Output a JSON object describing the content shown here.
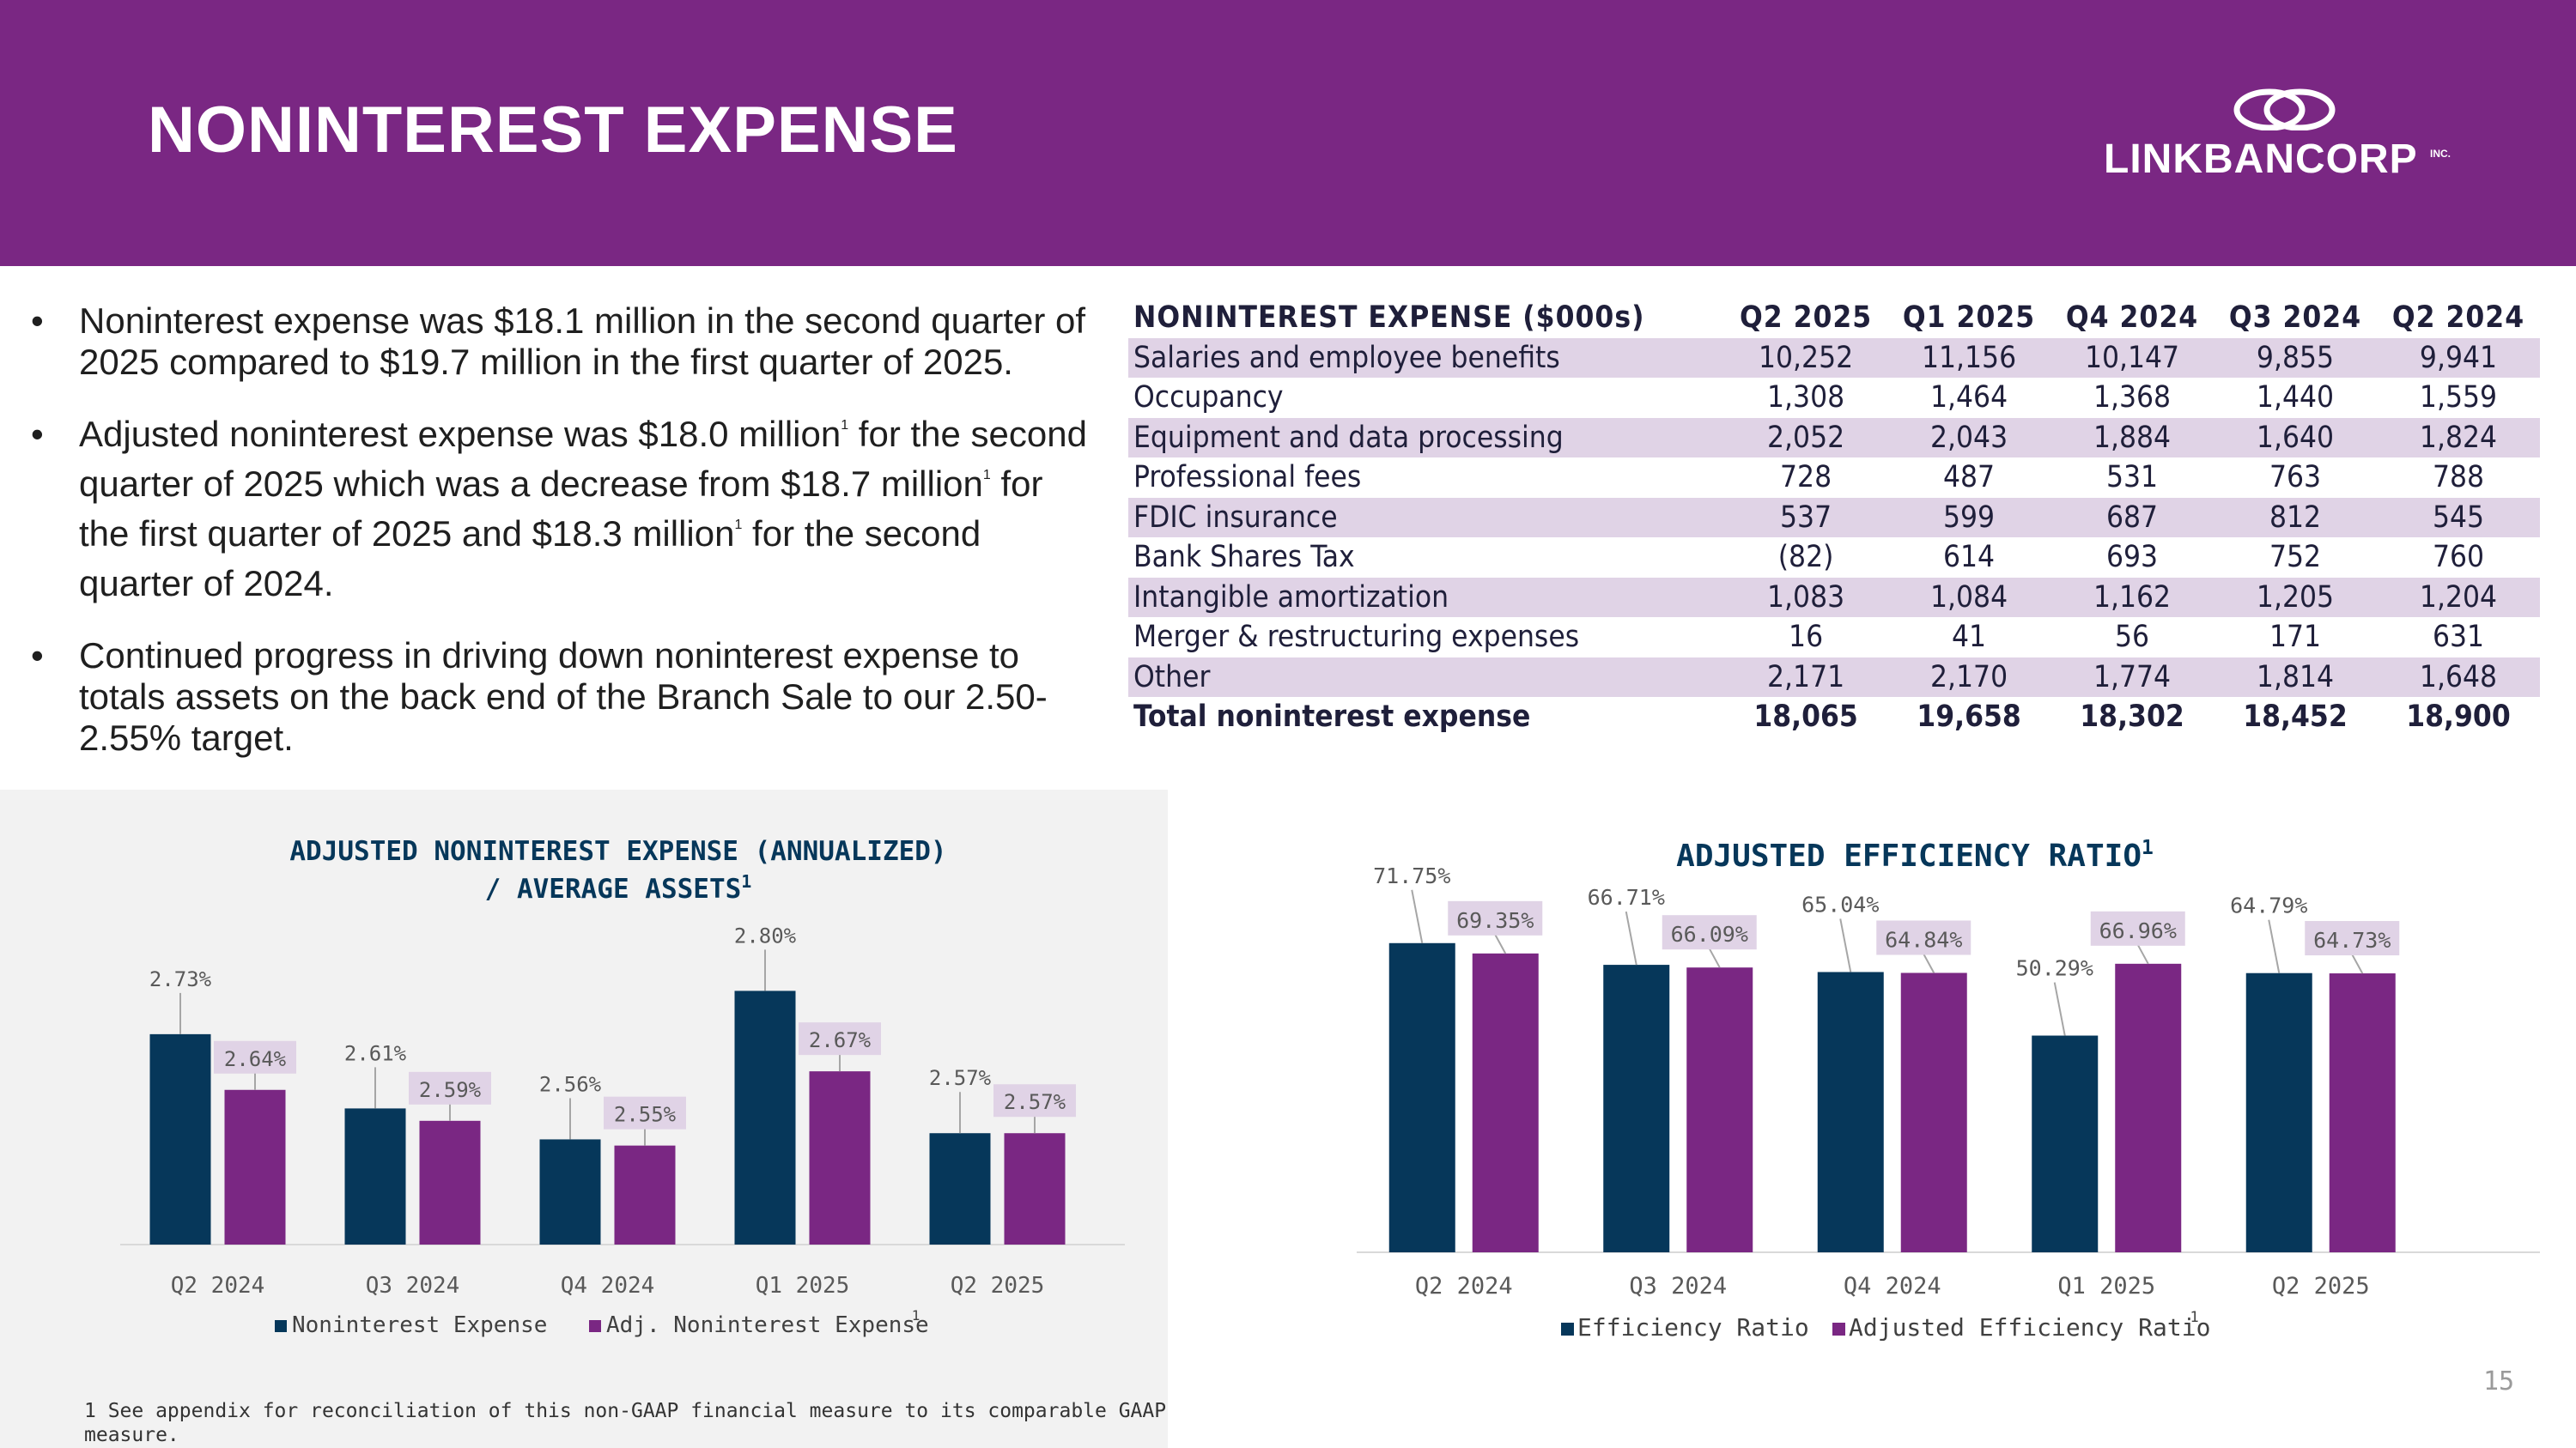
{
  "slide": {
    "title": "NONINTEREST EXPENSE",
    "logo_text": "LINKBANCORP",
    "logo_suffix": "INC.",
    "page_number": "15",
    "footnote": "1 See appendix for reconciliation of this non-GAAP financial measure to its comparable GAAP measure."
  },
  "bullets": {
    "b1": "Noninterest expense was $18.1 million in the second quarter of 2025 compared to $19.7 million in the first quarter of 2025.",
    "b2_p1": "Adjusted noninterest expense was $18.0 million",
    "b2_p2": " for the second quarter of 2025 which was a decrease from $18.7 million",
    "b2_p3": " for the first quarter of 2025 and $18.3 million",
    "b2_p4": "  for the second quarter of 2024.",
    "fn_mark": "1",
    "b3": "Continued progress in driving down noninterest expense to totals assets on the back end of the Branch Sale to our 2.50-2.55% target."
  },
  "table": {
    "header": [
      "NONINTEREST EXPENSE ($000s)",
      "Q2 2025",
      "Q1 2025",
      "Q4 2024",
      "Q3 2024",
      "Q2 2024"
    ],
    "rows": [
      [
        "Salaries and employee benefits",
        "10,252",
        "11,156",
        "10,147",
        "9,855",
        "9,941"
      ],
      [
        "Occupancy",
        "1,308",
        "1,464",
        "1,368",
        "1,440",
        "1,559"
      ],
      [
        "Equipment and data processing",
        "2,052",
        "2,043",
        "1,884",
        "1,640",
        "1,824"
      ],
      [
        "Professional fees",
        "728",
        "487",
        "531",
        "763",
        "788"
      ],
      [
        "FDIC insurance",
        "537",
        "599",
        "687",
        "812",
        "545"
      ],
      [
        "Bank Shares Tax",
        "(82)",
        "614",
        "693",
        "752",
        "760"
      ],
      [
        "Intangible amortization",
        "1,083",
        "1,084",
        "1,162",
        "1,205",
        "1,204"
      ],
      [
        "Merger & restructuring expenses",
        "16",
        "41",
        "56",
        "171",
        "631"
      ],
      [
        "Other",
        "2,171",
        "2,170",
        "1,774",
        "1,814",
        "1,648"
      ],
      [
        "Total noninterest expense",
        "18,065",
        "19,658",
        "18,302",
        "18,452",
        "18,900"
      ]
    ]
  },
  "colors": {
    "purple": "#7a2783",
    "navy": "#06375a",
    "shade": "#e0d3e6",
    "label_box": "#e0d3e6"
  },
  "chart_data": [
    {
      "type": "bar",
      "title": "ADJUSTED NONINTEREST EXPENSE (ANNUALIZED) / AVERAGE ASSETS",
      "title_line1": "ADJUSTED NONINTEREST EXPENSE (ANNUALIZED)",
      "title_line2": "/ AVERAGE ASSETS",
      "title_sup": "1",
      "categories": [
        "Q2 2024",
        "Q3 2024",
        "Q4 2024",
        "Q1 2025",
        "Q2 2025"
      ],
      "series": [
        {
          "name": "Noninterest Expense",
          "values": [
            2.73,
            2.61,
            2.56,
            2.8,
            2.57
          ],
          "labels": [
            "2.73%",
            "2.61%",
            "2.56%",
            "2.80%",
            "2.57%"
          ]
        },
        {
          "name": "Adj. Noninterest Expense",
          "values": [
            2.64,
            2.59,
            2.55,
            2.67,
            2.57
          ],
          "labels": [
            "2.64%",
            "2.59%",
            "2.55%",
            "2.67%",
            "2.57%"
          ]
        }
      ],
      "legend_sup": "1",
      "ylim": [
        2.39,
        2.82
      ],
      "xlabel": "",
      "ylabel": "",
      "grid": false,
      "legend": "bottom"
    },
    {
      "type": "bar",
      "title": "ADJUSTED EFFICIENCY RATIO",
      "title_sup": "1",
      "categories": [
        "Q2 2024",
        "Q3 2024",
        "Q4 2024",
        "Q1 2025",
        "Q2 2025"
      ],
      "series": [
        {
          "name": "Efficiency Ratio",
          "values": [
            71.75,
            66.71,
            65.04,
            50.29,
            64.79
          ],
          "labels": [
            "71.75%",
            "66.71%",
            "65.04%",
            "50.29%",
            "64.79%"
          ]
        },
        {
          "name": "Adjusted Efficiency Ratio",
          "values": [
            69.35,
            66.09,
            64.84,
            66.96,
            64.73
          ],
          "labels": [
            "69.35%",
            "66.09%",
            "64.84%",
            "66.96%",
            "64.73%"
          ]
        }
      ],
      "legend_sup": "1",
      "ylim": [
        0,
        73.5
      ],
      "xlabel": "",
      "ylabel": "",
      "grid": false,
      "legend": "bottom"
    }
  ]
}
